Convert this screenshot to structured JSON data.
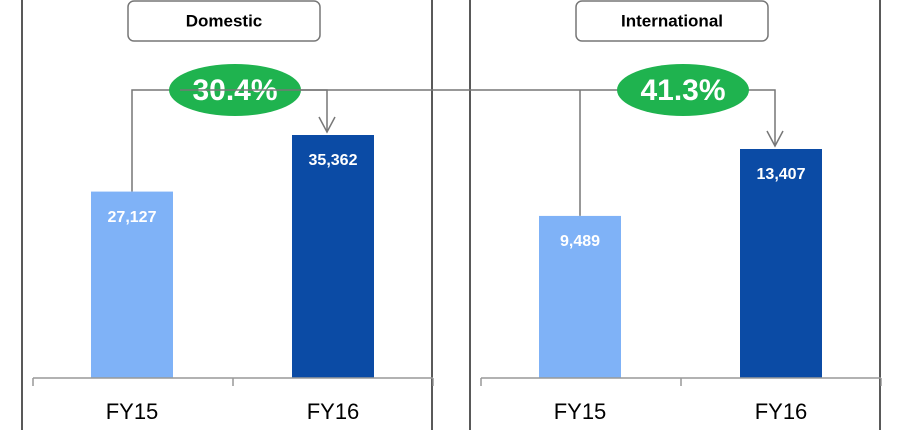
{
  "chart_data": [
    {
      "type": "bar",
      "title": "Domestic",
      "annotation": "30.4%",
      "categories": [
        "FY15",
        "FY16"
      ],
      "values": [
        27127,
        35362
      ],
      "value_labels": [
        "27,127",
        "35,362"
      ],
      "colors": [
        "#7fb2f7",
        "#0b4ba5"
      ]
    },
    {
      "type": "bar",
      "title": "International",
      "annotation": "41.3%",
      "categories": [
        "FY15",
        "FY16"
      ],
      "values": [
        9489,
        13407
      ],
      "value_labels": [
        "9,489",
        "13,407"
      ],
      "colors": [
        "#7fb2f7",
        "#0b4ba5"
      ]
    }
  ]
}
